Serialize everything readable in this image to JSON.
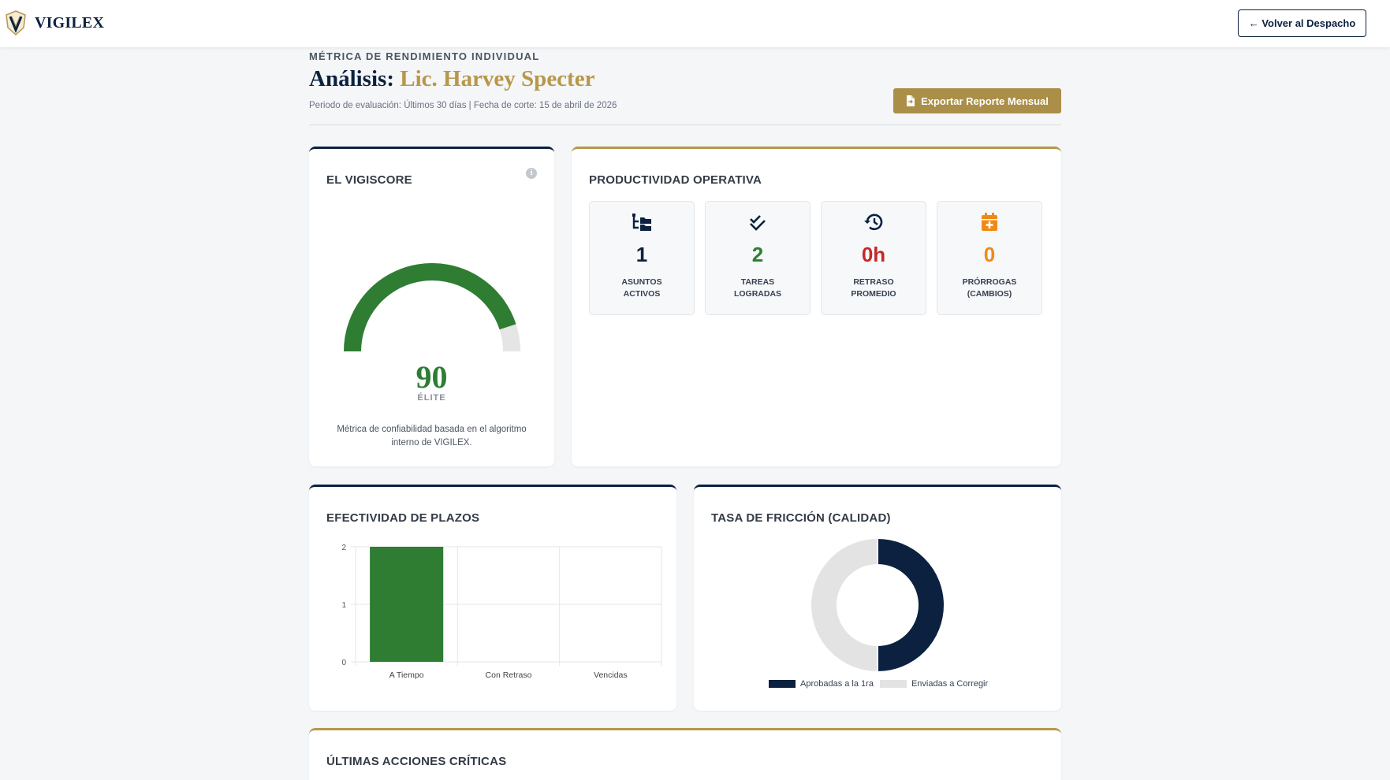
{
  "header": {
    "brand": "VIGILEX",
    "back_button": "← Volver al Despacho"
  },
  "page": {
    "eyebrow": "MÉTRICA DE RENDIMIENTO INDIVIDUAL",
    "title_prefix": "Análisis:",
    "title_name": "Lic. Harvey Specter",
    "subtitle": "Periodo de evaluación: Últimos 30 días | Fecha de corte: 15 de abril de 2026",
    "export_button": "Exportar Reporte Mensual"
  },
  "vigiscore": {
    "title": "EL VIGISCORE",
    "info_icon": "i",
    "score": "90",
    "score_fraction": 0.9,
    "level": "ÉLITE",
    "description": "Métrica de confiabilidad basada en el algoritmo interno de VIGILEX.",
    "colors": {
      "fill": "#2e7d32",
      "track": "#e5e5e5"
    }
  },
  "productividad": {
    "title": "PRODUCTIVIDAD OPERATIVA",
    "tiles": [
      {
        "icon": "folder-tree-icon",
        "value": "1",
        "label1": "ASUNTOS",
        "label2": "ACTIVOS",
        "color": "#0c213f"
      },
      {
        "icon": "double-check-icon",
        "value": "2",
        "label1": "TAREAS",
        "label2": "LOGRADAS",
        "color": "#2e7d32"
      },
      {
        "icon": "history-icon",
        "value": "0h",
        "label1": "RETRASO",
        "label2": "PROMEDIO",
        "color": "#c62828"
      },
      {
        "icon": "calendar-plus-icon",
        "value": "0",
        "label1": "PRÓRROGAS",
        "label2": "(CAMBIOS)",
        "color": "#ef8a17"
      }
    ]
  },
  "plazos": {
    "title": "EFECTIVIDAD DE PLAZOS"
  },
  "friccion": {
    "title": "TASA DE FRICCIÓN (CALIDAD)",
    "legend": [
      "Aprobadas a la 1ra",
      "Enviadas a Corregir"
    ]
  },
  "acciones": {
    "title": "ÚLTIMAS ACCIONES CRÍTICAS"
  },
  "colors": {
    "navy": "#0c213f",
    "gold": "#b8974a",
    "green": "#2e7d32"
  },
  "chart_data": [
    {
      "type": "bar",
      "categories": [
        "A Tiempo",
        "Con Retraso",
        "Vencidas"
      ],
      "values": [
        2,
        0,
        0
      ],
      "ylim": [
        0,
        2
      ],
      "yticks": [
        0,
        1,
        2
      ],
      "grid": true,
      "color": "#2e7d32"
    },
    {
      "type": "pie",
      "labels": [
        "Aprobadas a la 1ra",
        "Enviadas a Corregir"
      ],
      "values": [
        1,
        1
      ],
      "colors": [
        "#0c213f",
        "#e3e3e3"
      ],
      "legend": "bottom"
    }
  ]
}
